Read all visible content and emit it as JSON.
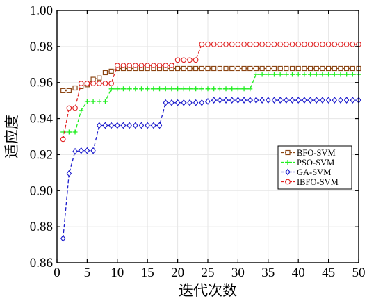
{
  "chart_data": {
    "type": "line",
    "xlabel": "迭代次数",
    "ylabel": "适应度",
    "xlim": [
      0,
      50
    ],
    "ylim": [
      0.86,
      1.0
    ],
    "xticks": [
      0,
      5,
      10,
      15,
      20,
      25,
      30,
      35,
      40,
      45,
      50
    ],
    "yticks": [
      0.86,
      0.88,
      0.9,
      0.92,
      0.94,
      0.96,
      0.98,
      1.0
    ],
    "xtick_labels": [
      "0",
      "5",
      "10",
      "15",
      "20",
      "25",
      "30",
      "35",
      "40",
      "45",
      "50"
    ],
    "ytick_labels": [
      "0.86",
      "0.88",
      "0.90",
      "0.92",
      "0.94",
      "0.96",
      "0.98",
      "1.00"
    ],
    "grid": true,
    "legend_position": "right",
    "x": [
      1,
      2,
      3,
      4,
      5,
      6,
      7,
      8,
      9,
      10,
      11,
      12,
      13,
      14,
      15,
      16,
      17,
      18,
      19,
      20,
      21,
      22,
      23,
      24,
      25,
      26,
      27,
      28,
      29,
      30,
      31,
      32,
      33,
      34,
      35,
      36,
      37,
      38,
      39,
      40,
      41,
      42,
      43,
      44,
      45,
      46,
      47,
      48,
      49,
      50
    ],
    "series": [
      {
        "name": "BFO-SVM",
        "color": "#8B4513",
        "marker": "square",
        "values": [
          0.9555,
          0.9555,
          0.957,
          0.9578,
          0.9588,
          0.9618,
          0.9625,
          0.9655,
          0.9663,
          0.9678,
          0.9678,
          0.9678,
          0.9678,
          0.9678,
          0.9678,
          0.9678,
          0.9678,
          0.9678,
          0.9678,
          0.9678,
          0.9678,
          0.9678,
          0.9678,
          0.9678,
          0.9678,
          0.9678,
          0.9678,
          0.9678,
          0.9678,
          0.9678,
          0.9678,
          0.9678,
          0.9678,
          0.9678,
          0.9678,
          0.9678,
          0.9678,
          0.9678,
          0.9678,
          0.9678,
          0.9678,
          0.9678,
          0.9678,
          0.9678,
          0.9678,
          0.9678,
          0.9678,
          0.9678,
          0.9678,
          0.9678
        ]
      },
      {
        "name": "PSO-SVM",
        "color": "#22ee22",
        "marker": "plus",
        "values": [
          0.9325,
          0.9325,
          0.9325,
          0.9445,
          0.9495,
          0.9495,
          0.9495,
          0.9495,
          0.9565,
          0.9565,
          0.9565,
          0.9565,
          0.9565,
          0.9565,
          0.9565,
          0.9565,
          0.9565,
          0.9565,
          0.9565,
          0.9565,
          0.9565,
          0.9565,
          0.9565,
          0.9565,
          0.9565,
          0.9565,
          0.9565,
          0.9565,
          0.9565,
          0.9565,
          0.9565,
          0.9565,
          0.9645,
          0.9645,
          0.9645,
          0.9645,
          0.9645,
          0.9645,
          0.9645,
          0.9645,
          0.9645,
          0.9645,
          0.9645,
          0.9645,
          0.9645,
          0.9645,
          0.9645,
          0.9645,
          0.9645,
          0.9645
        ]
      },
      {
        "name": "GA-SVM",
        "color": "#1a1acc",
        "marker": "diamond",
        "values": [
          0.8735,
          0.9095,
          0.9218,
          0.9222,
          0.9222,
          0.9222,
          0.9362,
          0.9362,
          0.9362,
          0.9362,
          0.9362,
          0.9362,
          0.9362,
          0.9362,
          0.9362,
          0.9362,
          0.9362,
          0.9488,
          0.9488,
          0.9488,
          0.9488,
          0.9488,
          0.9488,
          0.9488,
          0.9495,
          0.9502,
          0.9502,
          0.9502,
          0.9502,
          0.9502,
          0.9502,
          0.9502,
          0.9502,
          0.9502,
          0.9502,
          0.9502,
          0.9502,
          0.9502,
          0.9502,
          0.9502,
          0.9502,
          0.9502,
          0.9502,
          0.9502,
          0.9502,
          0.9502,
          0.9502,
          0.9502,
          0.9502,
          0.9502
        ]
      },
      {
        "name": "IBFO-SVM",
        "color": "#e02020",
        "marker": "circle",
        "values": [
          0.9285,
          0.9458,
          0.9458,
          0.9595,
          0.9595,
          0.9595,
          0.9595,
          0.9595,
          0.9595,
          0.9695,
          0.9695,
          0.9695,
          0.9695,
          0.9695,
          0.9695,
          0.9695,
          0.9695,
          0.9695,
          0.9695,
          0.9725,
          0.9725,
          0.9725,
          0.9725,
          0.9812,
          0.9812,
          0.9812,
          0.9812,
          0.9812,
          0.9812,
          0.9812,
          0.9812,
          0.9812,
          0.9812,
          0.9812,
          0.9812,
          0.9812,
          0.9812,
          0.9812,
          0.9812,
          0.9812,
          0.9812,
          0.9812,
          0.9812,
          0.9812,
          0.9812,
          0.9812,
          0.9812,
          0.9812,
          0.9812,
          0.9812
        ]
      }
    ]
  }
}
